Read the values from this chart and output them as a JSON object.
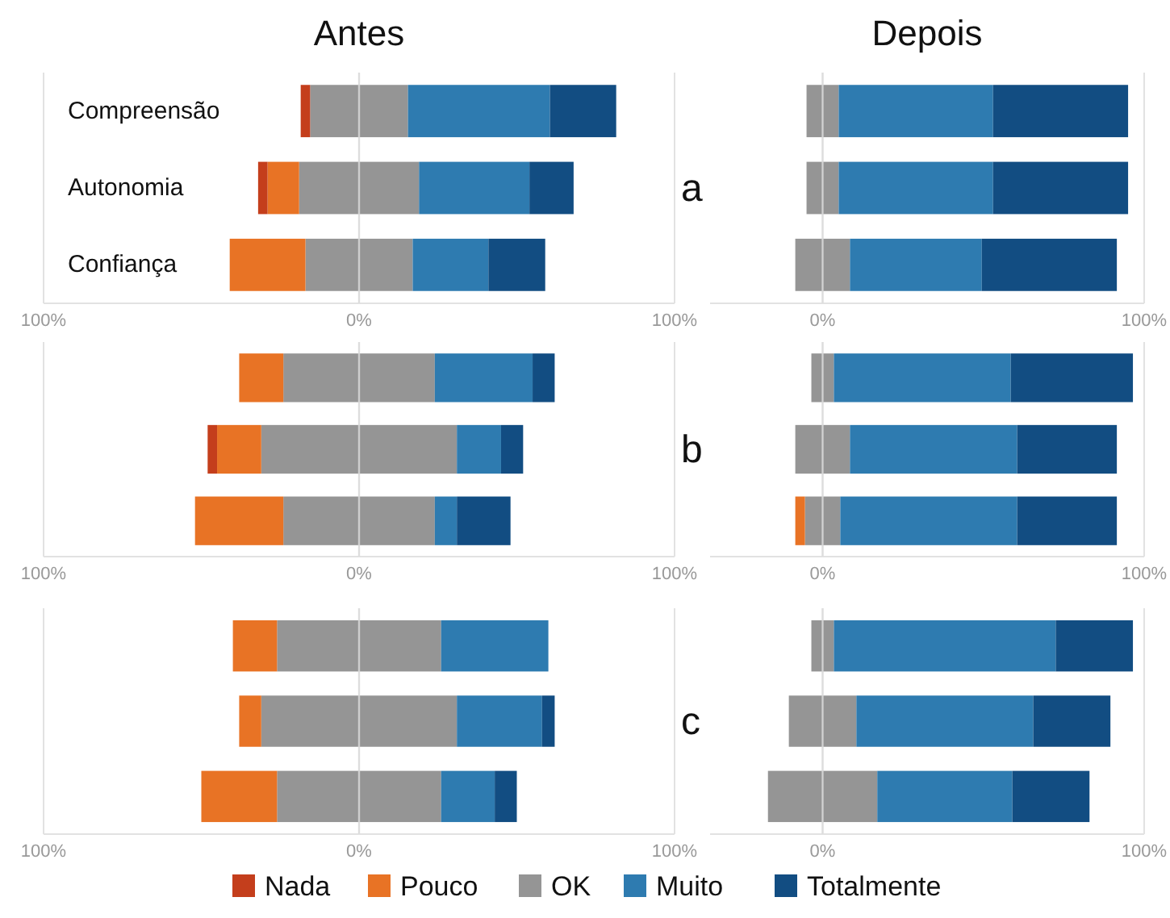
{
  "chart_data": [
    {
      "type": "bar",
      "title": "Antes",
      "orientation": "horizontal",
      "stacked": true,
      "categories": [
        "Compreensão",
        "Autonomia",
        "Confiança"
      ],
      "xlim": [
        -100,
        100
      ],
      "xticks": [
        {
          "value": -100,
          "label": "100%"
        },
        {
          "value": 0,
          "label": "0%"
        },
        {
          "value": 100,
          "label": "100%"
        }
      ],
      "grid": "x",
      "annotations": [
        "a"
      ],
      "series": [
        {
          "color": "#959595",
          "values": [
            -15.5,
            -19,
            -17
          ]
        },
        {
          "color": "#e87325",
          "values": [
            0,
            -10,
            -24
          ]
        },
        {
          "color": "#c43e1c",
          "values": [
            -3,
            -3,
            0
          ]
        },
        {
          "color": "#959595",
          "values": [
            15.5,
            19,
            17
          ]
        },
        {
          "color": "#2e7bb0",
          "values": [
            45,
            35,
            24
          ]
        },
        {
          "color": "#124d82",
          "values": [
            21,
            14,
            18
          ]
        }
      ]
    },
    {
      "type": "bar",
      "title": "Depois",
      "orientation": "horizontal",
      "stacked": true,
      "categories": [
        null,
        null,
        null
      ],
      "xlim": [
        -35,
        100
      ],
      "xticks": [
        {
          "value": 0,
          "label": "0%"
        },
        {
          "value": 100,
          "label": "100%"
        }
      ],
      "grid": "x",
      "tick_labels": "x",
      "series": [
        {
          "color": "#959595",
          "values": [
            -5,
            -5,
            -8.5
          ]
        },
        {
          "color": "#959595",
          "values": [
            5,
            5,
            8.5
          ]
        },
        {
          "color": "#2e7bb0",
          "values": [
            48,
            48,
            41
          ]
        },
        {
          "color": "#124d82",
          "values": [
            42,
            42,
            42
          ]
        }
      ]
    },
    {
      "type": "bar",
      "orientation": "horizontal",
      "stacked": true,
      "categories": [
        null,
        null,
        null
      ],
      "xlim": [
        -100,
        100
      ],
      "xticks": [
        {
          "value": -100,
          "label": "100%"
        },
        {
          "value": 0,
          "label": "0%"
        },
        {
          "value": 100,
          "label": "100%"
        }
      ],
      "grid": "x",
      "tick_labels": "x",
      "annotations": [
        "b"
      ],
      "legend": "bottom",
      "series": [
        {
          "name": "OK",
          "color": "#959595",
          "values": [
            -24,
            -31,
            -24
          ]
        },
        {
          "name": "Pouco",
          "color": "#e87325",
          "values": [
            -14,
            -14,
            -28
          ]
        },
        {
          "name": "Nada",
          "color": "#c43e1c",
          "values": [
            0,
            -3,
            0
          ]
        },
        {
          "color": "#959595",
          "values": [
            24,
            31,
            24
          ]
        },
        {
          "name": "Muito",
          "color": "#2e7bb0",
          "values": [
            31,
            14,
            7
          ]
        },
        {
          "name": "Totalmente",
          "color": "#124d82",
          "values": [
            7,
            7,
            17
          ]
        }
      ]
    },
    {
      "type": "bar",
      "orientation": "horizontal",
      "stacked": true,
      "categories": [
        null,
        null,
        null
      ],
      "xlim": [
        -35,
        100
      ],
      "xticks": [
        {
          "value": 0,
          "label": "0%"
        },
        {
          "value": 100,
          "label": "100%"
        }
      ],
      "grid": "x",
      "tick_labels": "x",
      "series": [
        {
          "color": "#959595",
          "values": [
            -3.5,
            -8.5,
            -5.5
          ]
        },
        {
          "color": "#e87325",
          "values": [
            0,
            0,
            -3
          ]
        },
        {
          "color": "#959595",
          "values": [
            3.5,
            8.5,
            5.5
          ]
        },
        {
          "color": "#2e7bb0",
          "values": [
            55,
            52,
            55
          ]
        },
        {
          "color": "#124d82",
          "values": [
            38,
            31,
            31
          ]
        }
      ]
    },
    {
      "type": "bar",
      "orientation": "horizontal",
      "stacked": true,
      "categories": [
        null,
        null,
        null
      ],
      "xlim": [
        -100,
        100
      ],
      "xticks": [
        {
          "value": -100,
          "label": "100%"
        },
        {
          "value": 0,
          "label": "0%"
        },
        {
          "value": 100,
          "label": "100%"
        }
      ],
      "grid": "x",
      "tick_labels": "x",
      "annotations": [
        "c"
      ],
      "series": [
        {
          "color": "#959595",
          "values": [
            -26,
            -31,
            -26
          ]
        },
        {
          "color": "#e87325",
          "values": [
            -14,
            -7,
            -24
          ]
        },
        {
          "color": "#959595",
          "values": [
            26,
            31,
            26
          ]
        },
        {
          "color": "#2e7bb0",
          "values": [
            34,
            27,
            17
          ]
        },
        {
          "color": "#124d82",
          "values": [
            0,
            4,
            7
          ]
        }
      ]
    },
    {
      "type": "bar",
      "orientation": "horizontal",
      "stacked": true,
      "categories": [
        null,
        null,
        null
      ],
      "xlim": [
        -35,
        100
      ],
      "xticks": [
        {
          "value": 0,
          "label": "0%"
        },
        {
          "value": 100,
          "label": "100%"
        }
      ],
      "grid": "x",
      "tick_labels": "x",
      "series": [
        {
          "color": "#959595",
          "values": [
            -3.5,
            -10.5,
            -17
          ]
        },
        {
          "color": "#959595",
          "values": [
            3.5,
            10.5,
            17
          ]
        },
        {
          "color": "#2e7bb0",
          "values": [
            69,
            55,
            42
          ]
        },
        {
          "color": "#124d82",
          "values": [
            24,
            24,
            24
          ]
        }
      ]
    }
  ]
}
